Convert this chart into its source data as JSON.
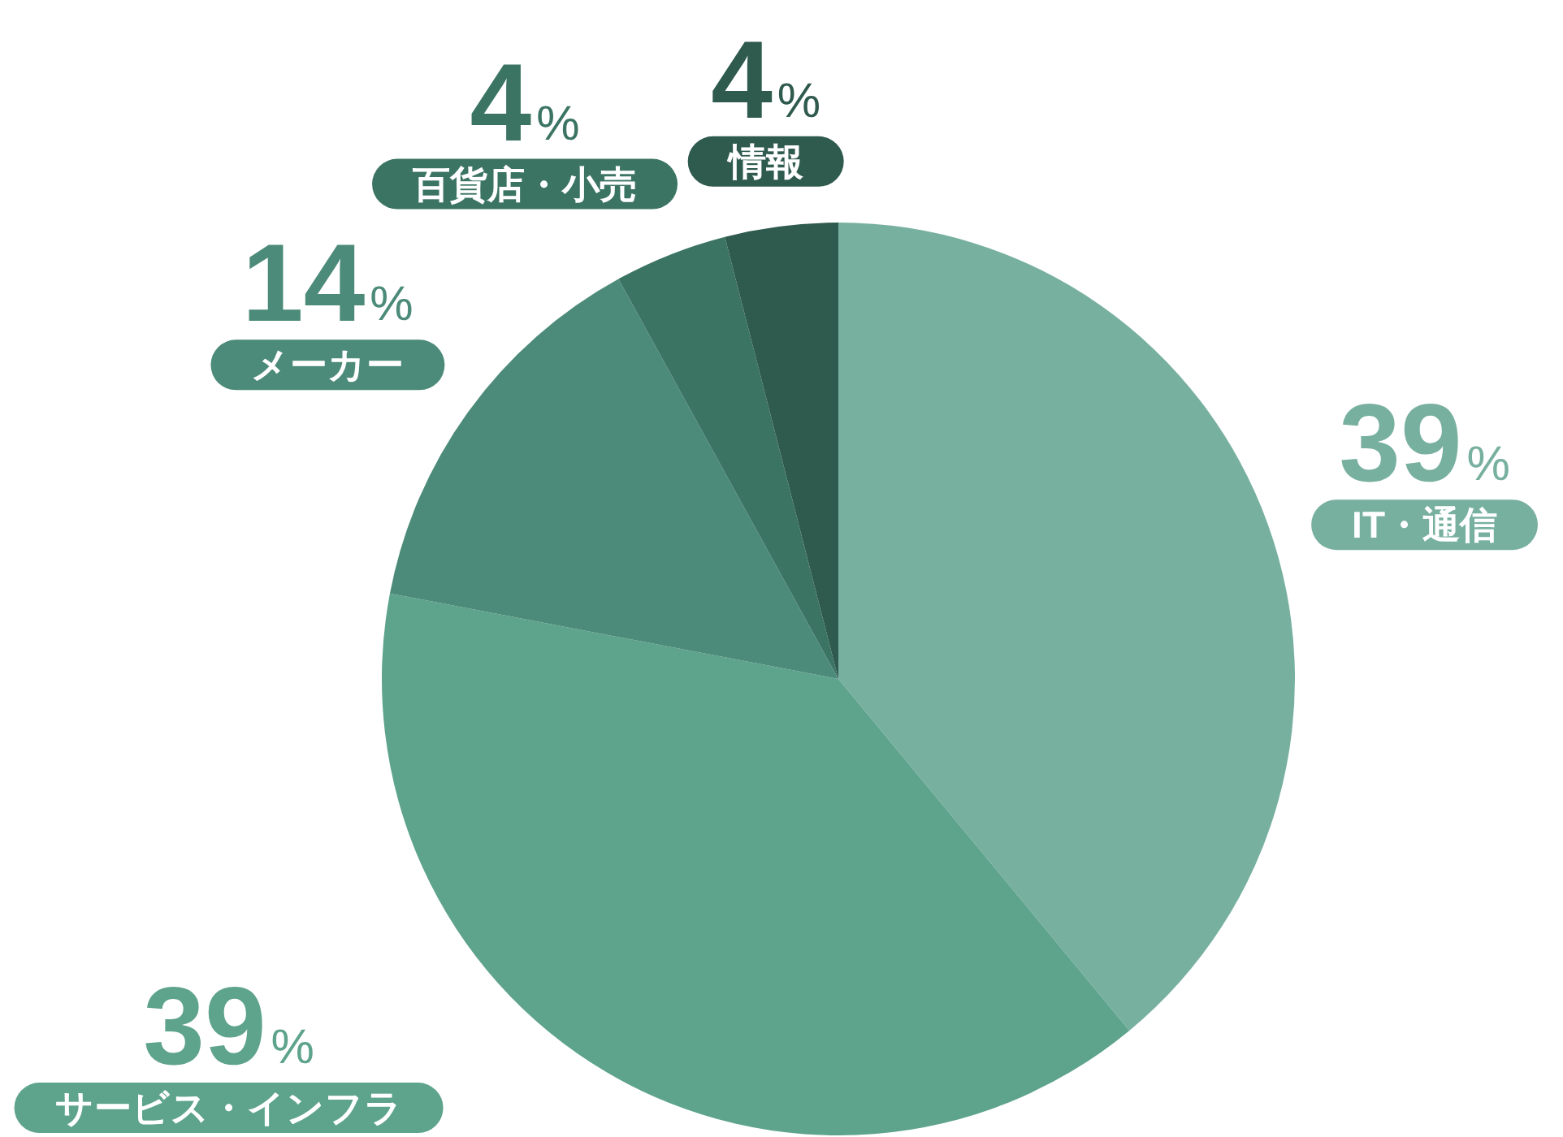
{
  "chart_data": {
    "type": "pie",
    "categories": [
      "IT・通信",
      "サービス・インフラ",
      "メーカー",
      "百貨店・小売",
      "情報"
    ],
    "values": [
      39,
      39,
      14,
      4,
      4
    ],
    "colors": [
      "#78b0a0",
      "#5ea38c",
      "#4c8b79",
      "#3c7464",
      "#2f5a4e"
    ],
    "value_labels": [
      "39%",
      "39%",
      "14%",
      "4%",
      "4%"
    ]
  }
}
